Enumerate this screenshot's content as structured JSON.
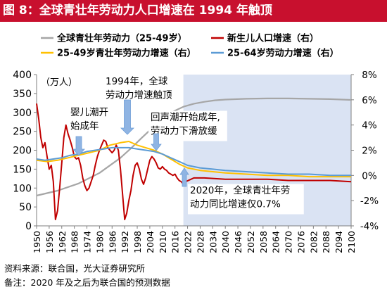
{
  "title": "图 8：全球青壮年劳动力人口增速在 1994 年触顶",
  "footer": {
    "source": "资料来源：联合国，光大证券研究所",
    "note": "备注：2020 年及之后为联合国的预测数据"
  },
  "colors": {
    "brand_red": "#c8102e",
    "series_gray": "#a6a6a6",
    "series_red": "#c00000",
    "series_yellow": "#ffc000",
    "series_blue": "#5b9bd5",
    "forecast_shade": "#dae3f3",
    "arrow_blue": "#8fb4e3"
  },
  "chart_data": {
    "type": "line",
    "legend_position": "top",
    "grid": false,
    "y_left": {
      "unit_label": "（万人）",
      "ylim": [
        0,
        400
      ],
      "ticks": [
        0,
        50,
        100,
        150,
        200,
        250,
        300,
        350,
        400
      ]
    },
    "y_right": {
      "ylim": [
        -0.04,
        0.08
      ],
      "ticks": [
        -0.04,
        -0.02,
        0,
        0.02,
        0.04,
        0.06,
        0.08
      ],
      "tick_labels": [
        "-4%",
        "-2%",
        "0%",
        "2%",
        "4%",
        "6%",
        "8%"
      ]
    },
    "x": {
      "range": [
        1950,
        2100
      ],
      "ticks": [
        1950,
        1956,
        1962,
        1968,
        1974,
        1980,
        1986,
        1992,
        1998,
        2004,
        2010,
        2016,
        2022,
        2028,
        2034,
        2040,
        2046,
        2052,
        2058,
        2064,
        2070,
        2076,
        2082,
        2088,
        2094,
        2100
      ]
    },
    "forecast_start": 2020,
    "series": [
      {
        "name": "全球青壮年劳动力（25-49岁）",
        "axis": "left",
        "color": "#a6a6a6",
        "points": [
          [
            1950,
            80
          ],
          [
            1960,
            93
          ],
          [
            1970,
            112
          ],
          [
            1980,
            140
          ],
          [
            1990,
            180
          ],
          [
            1995,
            205
          ],
          [
            2000,
            232
          ],
          [
            2005,
            258
          ],
          [
            2010,
            283
          ],
          [
            2015,
            302
          ],
          [
            2020,
            315
          ],
          [
            2025,
            323
          ],
          [
            2030,
            328
          ],
          [
            2035,
            332
          ],
          [
            2040,
            334
          ],
          [
            2050,
            336
          ],
          [
            2060,
            337
          ],
          [
            2070,
            337
          ],
          [
            2080,
            336
          ],
          [
            2090,
            335
          ],
          [
            2100,
            333
          ]
        ]
      },
      {
        "name": "新生儿人口增速（右）",
        "axis": "right",
        "color": "#c00000",
        "points": [
          [
            1950,
            0.057
          ],
          [
            1951,
            0.045
          ],
          [
            1952,
            0.03
          ],
          [
            1953,
            0.022
          ],
          [
            1954,
            0.026
          ],
          [
            1955,
            0.015
          ],
          [
            1956,
            0.005
          ],
          [
            1957,
            0.008
          ],
          [
            1958,
            -0.005
          ],
          [
            1959,
            -0.035
          ],
          [
            1960,
            -0.028
          ],
          [
            1961,
            -0.01
          ],
          [
            1962,
            0.01
          ],
          [
            1963,
            0.03
          ],
          [
            1964,
            0.04
          ],
          [
            1965,
            0.033
          ],
          [
            1966,
            0.028
          ],
          [
            1967,
            0.022
          ],
          [
            1968,
            0.015
          ],
          [
            1969,
            0.013
          ],
          [
            1970,
            0.014
          ],
          [
            1971,
            0.008
          ],
          [
            1972,
            -0.002
          ],
          [
            1973,
            -0.008
          ],
          [
            1974,
            -0.012
          ],
          [
            1975,
            -0.01
          ],
          [
            1976,
            -0.005
          ],
          [
            1977,
            0.0
          ],
          [
            1978,
            0.008
          ],
          [
            1979,
            0.015
          ],
          [
            1980,
            0.02
          ],
          [
            1981,
            0.024
          ],
          [
            1982,
            0.028
          ],
          [
            1983,
            0.027
          ],
          [
            1984,
            0.022
          ],
          [
            1985,
            0.02
          ],
          [
            1986,
            0.018
          ],
          [
            1987,
            0.02
          ],
          [
            1988,
            0.024
          ],
          [
            1989,
            0.02
          ],
          [
            1990,
            0.005
          ],
          [
            1991,
            -0.015
          ],
          [
            1992,
            -0.035
          ],
          [
            1993,
            -0.03
          ],
          [
            1994,
            -0.02
          ],
          [
            1995,
            -0.012
          ],
          [
            1996,
            0.0
          ],
          [
            1997,
            0.008
          ],
          [
            1998,
            0.01
          ],
          [
            1999,
            0.005
          ],
          [
            2000,
            -0.003
          ],
          [
            2001,
            -0.007
          ],
          [
            2002,
            -0.002
          ],
          [
            2003,
            0.005
          ],
          [
            2004,
            0.012
          ],
          [
            2005,
            0.015
          ],
          [
            2006,
            0.013
          ],
          [
            2007,
            0.01
          ],
          [
            2008,
            0.006
          ],
          [
            2009,
            0.005
          ],
          [
            2010,
            0.007
          ],
          [
            2011,
            0.005
          ],
          [
            2012,
            0.004
          ],
          [
            2013,
            0.002
          ],
          [
            2014,
            0.001
          ],
          [
            2015,
            0.0
          ],
          [
            2016,
            0.001
          ],
          [
            2017,
            -0.002
          ],
          [
            2018,
            -0.004
          ],
          [
            2019,
            -0.005
          ],
          [
            2020,
            -0.007
          ],
          [
            2021,
            -0.005
          ],
          [
            2025,
            -0.002
          ],
          [
            2030,
            -0.002
          ],
          [
            2040,
            -0.003
          ],
          [
            2050,
            -0.003
          ],
          [
            2060,
            -0.003
          ],
          [
            2070,
            -0.004
          ],
          [
            2080,
            -0.004
          ],
          [
            2090,
            -0.004
          ],
          [
            2100,
            -0.005
          ]
        ]
      },
      {
        "name": "25-49岁青壮年劳动力增速（右）",
        "axis": "right",
        "color": "#ffc000",
        "points": [
          [
            1950,
            0.012
          ],
          [
            1955,
            0.011
          ],
          [
            1960,
            0.012
          ],
          [
            1965,
            0.014
          ],
          [
            1970,
            0.016
          ],
          [
            1975,
            0.018
          ],
          [
            1980,
            0.02
          ],
          [
            1985,
            0.024
          ],
          [
            1990,
            0.026
          ],
          [
            1994,
            0.027
          ],
          [
            1998,
            0.024
          ],
          [
            2002,
            0.022
          ],
          [
            2006,
            0.02
          ],
          [
            2010,
            0.017
          ],
          [
            2014,
            0.013
          ],
          [
            2018,
            0.009
          ],
          [
            2022,
            0.006
          ],
          [
            2028,
            0.004
          ],
          [
            2034,
            0.003
          ],
          [
            2040,
            0.002
          ],
          [
            2050,
            0.001
          ],
          [
            2060,
            0.0
          ],
          [
            2070,
            0.0
          ],
          [
            2080,
            -0.001
          ],
          [
            2090,
            -0.001
          ],
          [
            2100,
            -0.001
          ]
        ]
      },
      {
        "name": "25-64岁劳动力增速（右）",
        "axis": "right",
        "color": "#5b9bd5",
        "points": [
          [
            1950,
            0.013
          ],
          [
            1954,
            0.012
          ],
          [
            1958,
            0.013
          ],
          [
            1962,
            0.014
          ],
          [
            1966,
            0.016
          ],
          [
            1970,
            0.017
          ],
          [
            1974,
            0.019
          ],
          [
            1978,
            0.02
          ],
          [
            1982,
            0.021
          ],
          [
            1986,
            0.022
          ],
          [
            1990,
            0.022
          ],
          [
            1994,
            0.022
          ],
          [
            1998,
            0.021
          ],
          [
            2002,
            0.02
          ],
          [
            2006,
            0.019
          ],
          [
            2010,
            0.017
          ],
          [
            2014,
            0.014
          ],
          [
            2018,
            0.011
          ],
          [
            2022,
            0.008
          ],
          [
            2028,
            0.006
          ],
          [
            2034,
            0.005
          ],
          [
            2040,
            0.004
          ],
          [
            2050,
            0.003
          ],
          [
            2060,
            0.002
          ],
          [
            2070,
            0.001
          ],
          [
            2080,
            0.001
          ],
          [
            2090,
            0.0
          ],
          [
            2100,
            0.0
          ]
        ]
      }
    ],
    "annotations": [
      {
        "id": "baby-boom",
        "lines": [
          "婴儿潮开",
          "始成年"
        ]
      },
      {
        "id": "peak-1994",
        "lines": [
          "1994年，全球",
          "劳动力增速触顶"
        ]
      },
      {
        "id": "echo-boom",
        "lines": [
          "回声潮开始成年,",
          "劳动力下滑放缓"
        ]
      },
      {
        "id": "note-2020",
        "lines": [
          "2020年，全球青壮年劳",
          "动力同比增速仅0.7%"
        ]
      }
    ]
  }
}
